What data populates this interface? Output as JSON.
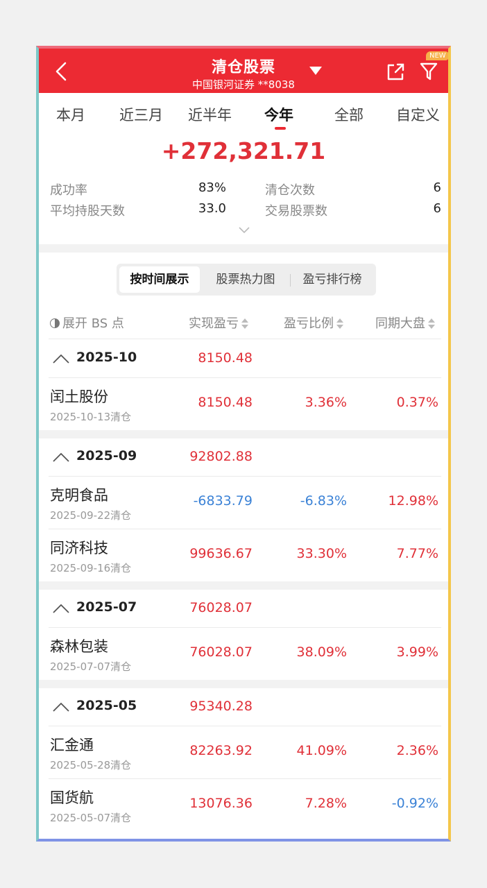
{
  "header": {
    "title": "清仓股票",
    "subtitle": "中国银河证券 **8038",
    "new_badge": "NEW"
  },
  "tabs": [
    "本月",
    "近三月",
    "近半年",
    "今年",
    "全部",
    "自定义"
  ],
  "active_tab": "今年",
  "total_profit": "+272,321.71",
  "stats": {
    "success_rate_label": "成功率",
    "success_rate": "83%",
    "clear_count_label": "清仓次数",
    "clear_count": "6",
    "avg_days_label": "平均持股天数",
    "avg_days": "33.0",
    "stock_count_label": "交易股票数",
    "stock_count": "6"
  },
  "segments": [
    "按时间展示",
    "股票热力图",
    "盈亏排行榜"
  ],
  "columns": {
    "expand_bs": "展开 BS 点",
    "realized": "实现盈亏",
    "ratio": "盈亏比例",
    "market": "同期大盘"
  },
  "colors": {
    "brand": "#ec2a33",
    "gain": "#e03038",
    "loss": "#3b82d6"
  },
  "groups": [
    {
      "month": "2025-10",
      "total": "8150.48",
      "items": [
        {
          "name": "闰土股份",
          "date": "2025-10-13清仓",
          "profit": "8150.48",
          "ratio": "3.36%",
          "market": "0.37%",
          "profit_dir": "up",
          "ratio_dir": "up",
          "market_dir": "up"
        }
      ]
    },
    {
      "month": "2025-09",
      "total": "92802.88",
      "items": [
        {
          "name": "克明食品",
          "date": "2025-09-22清仓",
          "profit": "-6833.79",
          "ratio": "-6.83%",
          "market": "12.98%",
          "profit_dir": "down",
          "ratio_dir": "down",
          "market_dir": "up"
        },
        {
          "name": "同济科技",
          "date": "2025-09-16清仓",
          "profit": "99636.67",
          "ratio": "33.30%",
          "market": "7.77%",
          "profit_dir": "up",
          "ratio_dir": "up",
          "market_dir": "up"
        }
      ]
    },
    {
      "month": "2025-07",
      "total": "76028.07",
      "items": [
        {
          "name": "森林包装",
          "date": "2025-07-07清仓",
          "profit": "76028.07",
          "ratio": "38.09%",
          "market": "3.99%",
          "profit_dir": "up",
          "ratio_dir": "up",
          "market_dir": "up"
        }
      ]
    },
    {
      "month": "2025-05",
      "total": "95340.28",
      "items": [
        {
          "name": "汇金通",
          "date": "2025-05-28清仓",
          "profit": "82263.92",
          "ratio": "41.09%",
          "market": "2.36%",
          "profit_dir": "up",
          "ratio_dir": "up",
          "market_dir": "up"
        },
        {
          "name": "国货航",
          "date": "2025-05-07清仓",
          "profit": "13076.36",
          "ratio": "7.28%",
          "market": "-0.92%",
          "profit_dir": "up",
          "ratio_dir": "up",
          "market_dir": "down"
        }
      ]
    }
  ]
}
